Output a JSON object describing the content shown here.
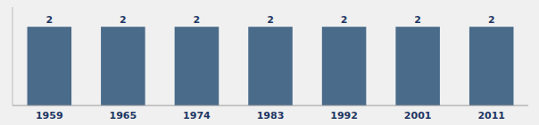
{
  "chart_data": {
    "type": "bar",
    "categories": [
      "1959",
      "1965",
      "1974",
      "1983",
      "1992",
      "2001",
      "2011"
    ],
    "values": [
      2,
      2,
      2,
      2,
      2,
      2,
      2
    ],
    "color": "#4A6B8A",
    "ylim": [
      0,
      2.5
    ],
    "data_labels": true,
    "tick_labels": "x",
    "grid": false
  }
}
